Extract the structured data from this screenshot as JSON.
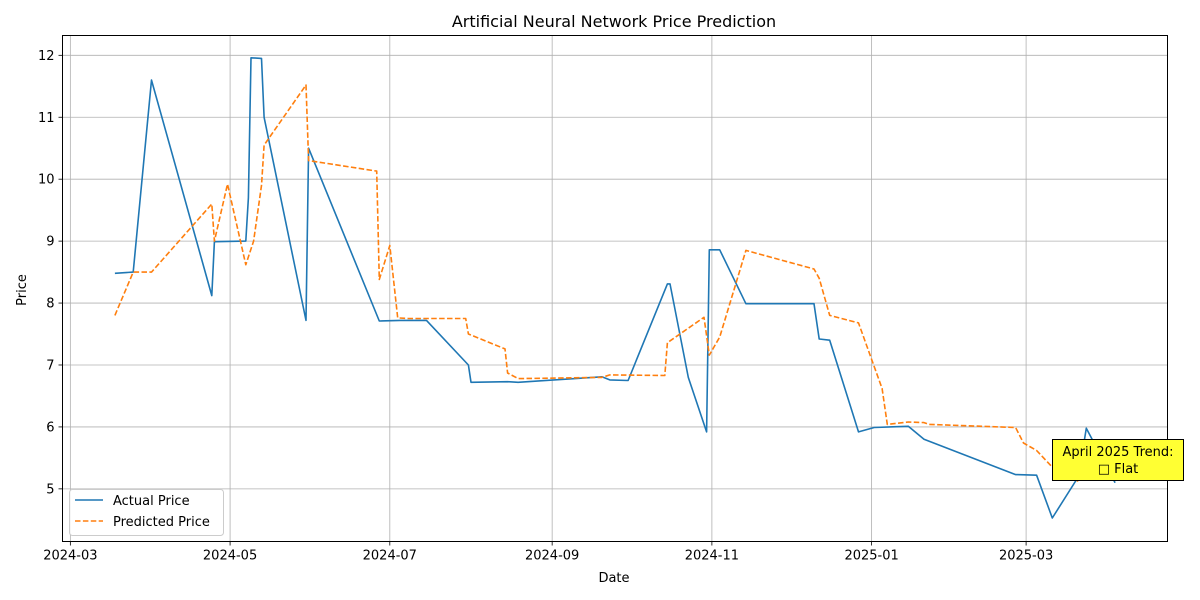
{
  "chart_data": {
    "type": "line",
    "title": "Artificial Neural Network Price Prediction",
    "xlabel": "Date",
    "ylabel": "Price",
    "x_ticks": [
      "2024-03",
      "2024-05",
      "2024-07",
      "2024-09",
      "2024-11",
      "2025-01",
      "2025-03"
    ],
    "xlim": [
      "2024-02-27",
      "2025-04-24"
    ],
    "ylim": [
      4.15,
      12.32
    ],
    "y_ticks": [
      5,
      6,
      7,
      8,
      9,
      10,
      11,
      12
    ],
    "grid": true,
    "legend_position": "lower-left",
    "series": [
      {
        "name": "Actual Price",
        "color": "#1f77b4",
        "style": "solid",
        "points": [
          [
            "2024-03-18",
            8.48
          ],
          [
            "2024-03-25",
            8.5
          ],
          [
            "2024-04-01",
            11.6
          ],
          [
            "2024-04-24",
            8.12
          ],
          [
            "2024-04-25",
            8.99
          ],
          [
            "2024-05-07",
            9.0
          ],
          [
            "2024-05-08",
            9.7
          ],
          [
            "2024-05-09",
            11.96
          ],
          [
            "2024-05-13",
            11.95
          ],
          [
            "2024-05-14",
            11.0
          ],
          [
            "2024-05-30",
            7.72
          ],
          [
            "2024-05-31",
            10.5
          ],
          [
            "2024-06-27",
            7.71
          ],
          [
            "2024-07-05",
            7.72
          ],
          [
            "2024-07-15",
            7.72
          ],
          [
            "2024-07-31",
            7.0
          ],
          [
            "2024-08-01",
            6.72
          ],
          [
            "2024-08-15",
            6.73
          ],
          [
            "2024-08-19",
            6.72
          ],
          [
            "2024-09-20",
            6.81
          ],
          [
            "2024-09-23",
            6.76
          ],
          [
            "2024-09-30",
            6.75
          ],
          [
            "2024-10-15",
            8.31
          ],
          [
            "2024-10-16",
            8.31
          ],
          [
            "2024-10-23",
            6.8
          ],
          [
            "2024-10-30",
            5.92
          ],
          [
            "2024-10-31",
            8.86
          ],
          [
            "2024-11-04",
            8.86
          ],
          [
            "2024-11-14",
            7.99
          ],
          [
            "2024-12-10",
            7.99
          ],
          [
            "2024-12-12",
            7.42
          ],
          [
            "2024-12-16",
            7.4
          ],
          [
            "2024-12-27",
            5.92
          ],
          [
            "2025-01-02",
            5.99
          ],
          [
            "2025-01-15",
            6.01
          ],
          [
            "2025-01-21",
            5.8
          ],
          [
            "2025-02-25",
            5.23
          ],
          [
            "2025-03-05",
            5.22
          ],
          [
            "2025-03-11",
            4.53
          ],
          [
            "2025-03-21",
            5.2
          ],
          [
            "2025-03-24",
            5.98
          ],
          [
            "2025-04-04",
            5.1
          ]
        ]
      },
      {
        "name": "Predicted Price",
        "color": "#ff7f0e",
        "style": "dashed",
        "points": [
          [
            "2024-03-18",
            7.8
          ],
          [
            "2024-03-25",
            8.5
          ],
          [
            "2024-04-01",
            8.5
          ],
          [
            "2024-04-24",
            9.6
          ],
          [
            "2024-04-25",
            9.0
          ],
          [
            "2024-04-30",
            9.92
          ],
          [
            "2024-05-07",
            8.62
          ],
          [
            "2024-05-10",
            9.0
          ],
          [
            "2024-05-13",
            9.9
          ],
          [
            "2024-05-14",
            10.55
          ],
          [
            "2024-05-30",
            11.52
          ],
          [
            "2024-05-31",
            10.3
          ],
          [
            "2024-06-26",
            10.13
          ],
          [
            "2024-06-27",
            8.38
          ],
          [
            "2024-07-01",
            8.93
          ],
          [
            "2024-07-04",
            7.76
          ],
          [
            "2024-07-08",
            7.75
          ],
          [
            "2024-07-30",
            7.75
          ],
          [
            "2024-07-31",
            7.5
          ],
          [
            "2024-08-14",
            7.26
          ],
          [
            "2024-08-15",
            6.87
          ],
          [
            "2024-08-19",
            6.78
          ],
          [
            "2024-09-20",
            6.8
          ],
          [
            "2024-09-23",
            6.84
          ],
          [
            "2024-10-14",
            6.83
          ],
          [
            "2024-10-15",
            7.36
          ],
          [
            "2024-10-29",
            7.77
          ],
          [
            "2024-10-31",
            7.16
          ],
          [
            "2024-11-04",
            7.45
          ],
          [
            "2024-11-14",
            8.85
          ],
          [
            "2024-12-10",
            8.55
          ],
          [
            "2024-12-12",
            8.4
          ],
          [
            "2024-12-16",
            7.8
          ],
          [
            "2024-12-27",
            7.68
          ],
          [
            "2025-01-05",
            6.62
          ],
          [
            "2025-01-07",
            6.04
          ],
          [
            "2025-01-15",
            6.08
          ],
          [
            "2025-01-21",
            6.07
          ],
          [
            "2025-01-23",
            6.04
          ],
          [
            "2025-02-25",
            5.99
          ],
          [
            "2025-02-28",
            5.74
          ],
          [
            "2025-03-05",
            5.62
          ],
          [
            "2025-03-11",
            5.35
          ],
          [
            "2025-03-21",
            5.12
          ]
        ]
      }
    ],
    "annotation": {
      "text_line1": "April 2025 Trend:",
      "text_line2": "□ Flat",
      "background": "#ffff33"
    }
  }
}
